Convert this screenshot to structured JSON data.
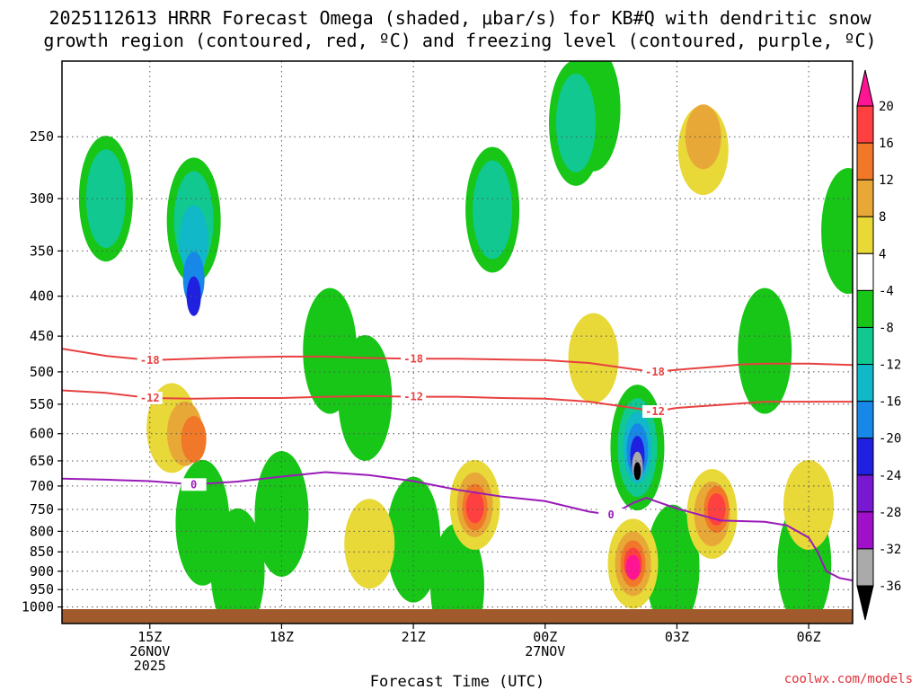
{
  "chart_data": {
    "type": "heatmap",
    "title_line1": "2025112613 HRRR Forecast Omega (shaded, μbar/s) for KB#Q with dendritic snow",
    "title_line2": "growth region (contoured, red, ºC) and freezing level (contoured, purple, ºC)",
    "xlabel": "Forecast Time (UTC)",
    "x_range_hours": [
      13.0,
      31.0
    ],
    "y_range_hpa": [
      1050,
      200
    ],
    "x_ticks": [
      {
        "h": 15,
        "l1": "15Z",
        "l2": "26NOV",
        "l3": "2025"
      },
      {
        "h": 18,
        "l1": "18Z",
        "l2": "",
        "l3": ""
      },
      {
        "h": 21,
        "l1": "21Z",
        "l2": "",
        "l3": ""
      },
      {
        "h": 24,
        "l1": "00Z",
        "l2": "27NOV",
        "l3": ""
      },
      {
        "h": 27,
        "l1": "03Z",
        "l2": "",
        "l3": ""
      },
      {
        "h": 30,
        "l1": "06Z",
        "l2": "",
        "l3": ""
      }
    ],
    "y_ticks": [
      "250",
      "300",
      "350",
      "400",
      "450",
      "500",
      "550",
      "600",
      "650",
      "700",
      "750",
      "800",
      "850",
      "900",
      "950",
      "1000"
    ],
    "colorbar": {
      "labels": [
        "20",
        "16",
        "12",
        "8",
        "4",
        "-4",
        "-8",
        "-12",
        "-16",
        "-20",
        "-24",
        "-28",
        "-32",
        "-36"
      ],
      "colors": [
        "#ff1493",
        "#ff4040",
        "#f07828",
        "#e8a838",
        "#e8d838",
        "#ffffff",
        "#17c617",
        "#10c890",
        "#10b8c8",
        "#1888e8",
        "#2020e0",
        "#7818d0",
        "#a010c8",
        "#aaaaaa",
        "#000000"
      ]
    },
    "isotherms_red": [
      {
        "label": "-18",
        "points": [
          [
            13.0,
            467
          ],
          [
            14.0,
            477
          ],
          [
            15.0,
            483
          ],
          [
            16.0,
            481
          ],
          [
            17.0,
            479
          ],
          [
            18.0,
            478
          ],
          [
            19.0,
            478
          ],
          [
            20.0,
            480
          ],
          [
            21.0,
            481
          ],
          [
            22.0,
            481
          ],
          [
            23.0,
            482
          ],
          [
            24.0,
            483
          ],
          [
            25.0,
            487
          ],
          [
            26.0,
            496
          ],
          [
            26.5,
            500
          ],
          [
            27.0,
            497
          ],
          [
            28.0,
            492
          ],
          [
            28.5,
            489
          ],
          [
            29.0,
            488
          ],
          [
            30.0,
            488
          ],
          [
            31.0,
            490
          ]
        ]
      },
      {
        "label": "-12",
        "points": [
          [
            13.0,
            528
          ],
          [
            14.0,
            532
          ],
          [
            15.0,
            540
          ],
          [
            16.0,
            541
          ],
          [
            17.0,
            540
          ],
          [
            18.0,
            540
          ],
          [
            19.0,
            538
          ],
          [
            20.0,
            537
          ],
          [
            21.0,
            538
          ],
          [
            22.0,
            538
          ],
          [
            23.0,
            540
          ],
          [
            24.0,
            541
          ],
          [
            25.0,
            546
          ],
          [
            26.0,
            556
          ],
          [
            26.5,
            562
          ],
          [
            27.0,
            556
          ],
          [
            28.0,
            551
          ],
          [
            29.0,
            546
          ],
          [
            30.0,
            546
          ],
          [
            31.0,
            546
          ]
        ]
      }
    ],
    "isotherms_purple": [
      {
        "label": "0",
        "points": [
          [
            13.0,
            685
          ],
          [
            14.0,
            687
          ],
          [
            15.0,
            690
          ],
          [
            16.0,
            697
          ],
          [
            17.0,
            691
          ],
          [
            18.0,
            681
          ],
          [
            19.0,
            672
          ],
          [
            20.0,
            678
          ],
          [
            21.0,
            690
          ],
          [
            22.0,
            708
          ],
          [
            23.0,
            722
          ],
          [
            24.0,
            732
          ],
          [
            25.0,
            755
          ],
          [
            25.5,
            762
          ],
          [
            26.0,
            736
          ],
          [
            26.3,
            725
          ],
          [
            27.0,
            748
          ],
          [
            28.0,
            775
          ],
          [
            29.0,
            778
          ],
          [
            29.5,
            786
          ],
          [
            30.0,
            815
          ],
          [
            30.2,
            850
          ],
          [
            30.4,
            900
          ],
          [
            30.7,
            918
          ],
          [
            31.0,
            925
          ]
        ]
      }
    ],
    "omega_regions": [
      {
        "value": -8,
        "centers": [
          [
            14.0,
            300
          ],
          [
            16.0,
            320
          ],
          [
            19.1,
            470
          ],
          [
            19.9,
            540
          ],
          [
            22.8,
            310
          ],
          [
            24.7,
            240
          ],
          [
            25.1,
            230
          ],
          [
            26.1,
            625
          ],
          [
            16.2,
            780
          ],
          [
            29.0,
            470
          ],
          [
            26.9,
            890
          ],
          [
            21.0,
            820
          ],
          [
            22.0,
            940
          ],
          [
            17.0,
            900
          ],
          [
            18.0,
            760
          ],
          [
            30.9,
            330
          ],
          [
            29.9,
            880
          ]
        ]
      },
      {
        "value": -12,
        "centers": [
          [
            14.0,
            300
          ],
          [
            16.0,
            320
          ],
          [
            22.8,
            310
          ],
          [
            24.7,
            240
          ],
          [
            26.1,
            625
          ]
        ]
      },
      {
        "value": -16,
        "centers": [
          [
            16.0,
            340
          ],
          [
            26.1,
            625
          ]
        ]
      },
      {
        "value": -20,
        "centers": [
          [
            16.0,
            380
          ],
          [
            26.1,
            630
          ]
        ]
      },
      {
        "value": -24,
        "centers": [
          [
            16.0,
            400
          ],
          [
            26.1,
            640
          ]
        ]
      },
      {
        "value": -32,
        "centers": [
          [
            26.1,
            660
          ]
        ]
      },
      {
        "value": -36,
        "centers": [
          [
            26.1,
            670
          ]
        ]
      },
      {
        "value": 4,
        "centers": [
          [
            15.5,
            590
          ],
          [
            22.4,
            740
          ],
          [
            27.8,
            760
          ],
          [
            26.0,
            880
          ],
          [
            27.6,
            260
          ],
          [
            30.0,
            740
          ],
          [
            25.1,
            480
          ],
          [
            20.0,
            830
          ]
        ]
      },
      {
        "value": 8,
        "centers": [
          [
            15.8,
            600
          ],
          [
            22.4,
            740
          ],
          [
            27.8,
            760
          ],
          [
            26.0,
            880
          ],
          [
            27.6,
            250
          ]
        ]
      },
      {
        "value": 12,
        "centers": [
          [
            16.0,
            610
          ],
          [
            22.4,
            745
          ],
          [
            27.9,
            750
          ],
          [
            26.0,
            880
          ]
        ]
      },
      {
        "value": 16,
        "centers": [
          [
            22.4,
            745
          ],
          [
            27.9,
            750
          ],
          [
            26.0,
            880
          ]
        ]
      },
      {
        "value": 20,
        "centers": [
          [
            26.0,
            890
          ]
        ]
      }
    ]
  },
  "credit": "coolwx.com/models"
}
